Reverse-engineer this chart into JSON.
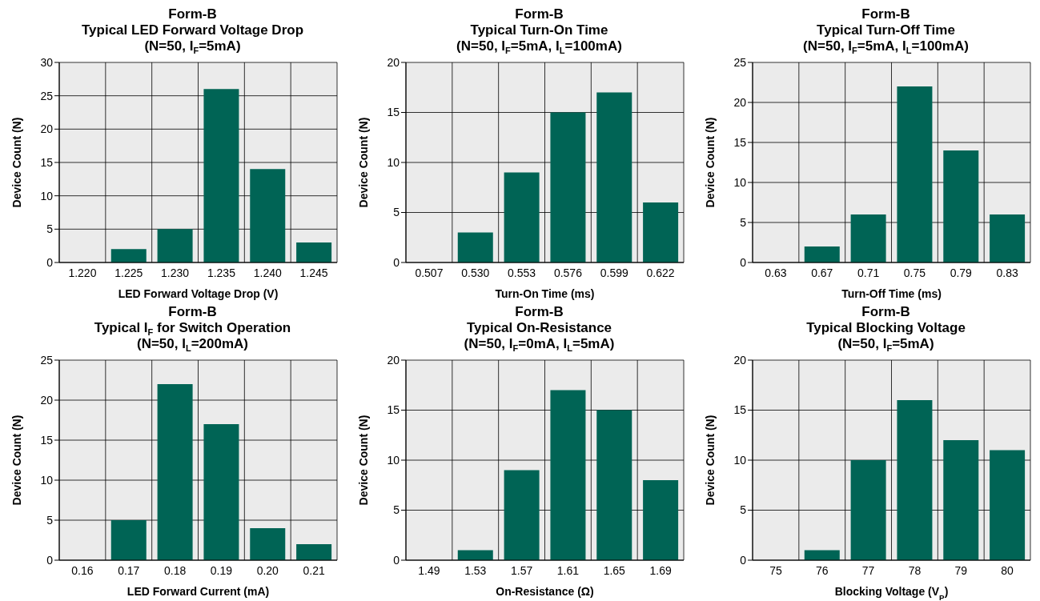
{
  "chart_data": [
    {
      "type": "bar",
      "title": "Form-B\nTypical LED Forward Voltage Drop\n(N=50, I$_{F}$=5mA)",
      "xlabel": "LED Forward Voltage Drop (V)",
      "ylabel": "Device Count (N)",
      "categories": [
        "1.220",
        "1.225",
        "1.230",
        "1.235",
        "1.240",
        "1.245"
      ],
      "values": [
        0,
        2,
        5,
        26,
        14,
        3
      ],
      "color": "#006455",
      "ylim": [
        0,
        30
      ],
      "yticks": [
        0,
        5,
        10,
        15,
        20,
        25,
        30
      ],
      "grid": true
    },
    {
      "type": "bar",
      "title": "Form-B\nTypical Turn-On Time\n(N=50, I$_{F}$=5mA, I$_{L}$=100mA)",
      "xlabel": "Turn-On Time (ms)",
      "ylabel": "Device Count (N)",
      "categories": [
        "0.507",
        "0.530",
        "0.553",
        "0.576",
        "0.599",
        "0.622"
      ],
      "values": [
        0,
        3,
        9,
        15,
        17,
        6
      ],
      "color": "#006455",
      "ylim": [
        0,
        20
      ],
      "yticks": [
        0,
        5,
        10,
        15,
        20
      ],
      "grid": true
    },
    {
      "type": "bar",
      "title": "Form-B\nTypical Turn-Off Time\n(N=50, I$_{F}$=5mA, I$_{L}$=100mA)",
      "xlabel": "Turn-Off Time (ms)",
      "ylabel": "Device Count (N)",
      "categories": [
        "0.63",
        "0.67",
        "0.71",
        "0.75",
        "0.79",
        "0.83"
      ],
      "values": [
        0,
        2,
        6,
        22,
        14,
        6
      ],
      "color": "#006455",
      "ylim": [
        0,
        25
      ],
      "yticks": [
        0,
        5,
        10,
        15,
        20,
        25
      ],
      "grid": true
    },
    {
      "type": "bar",
      "title": "Form-B\nTypical I$_{F}$ for Switch Operation\n(N=50, I$_{L}$=200mA)",
      "xlabel": "LED Forward Current (mA)",
      "ylabel": "Device Count (N)",
      "categories": [
        "0.16",
        "0.17",
        "0.18",
        "0.19",
        "0.20",
        "0.21"
      ],
      "values": [
        0,
        5,
        22,
        17,
        4,
        2
      ],
      "color": "#006455",
      "ylim": [
        0,
        25
      ],
      "yticks": [
        0,
        5,
        10,
        15,
        20,
        25
      ],
      "grid": true
    },
    {
      "type": "bar",
      "title": "Form-B\nTypical On-Resistance\n(N=50, I$_{F}$=0mA, I$_{L}$=5mA)",
      "xlabel": "On-Resistance (Ω)",
      "ylabel": "Device Count (N)",
      "categories": [
        "1.49",
        "1.53",
        "1.57",
        "1.61",
        "1.65",
        "1.69"
      ],
      "values": [
        0,
        1,
        9,
        17,
        15,
        8
      ],
      "color": "#006455",
      "ylim": [
        0,
        20
      ],
      "yticks": [
        0,
        5,
        10,
        15,
        20
      ],
      "grid": true
    },
    {
      "type": "bar",
      "title": "Form-B\nTypical Blocking Voltage\n(N=50, I$_{F}$=5mA)",
      "xlabel": "Blocking Voltage (V$_{P}$)",
      "ylabel": "Device Count (N)",
      "categories": [
        "75",
        "76",
        "77",
        "78",
        "79",
        "80"
      ],
      "values": [
        0,
        1,
        10,
        16,
        12,
        11
      ],
      "color": "#006455",
      "ylim": [
        0,
        20
      ],
      "yticks": [
        0,
        5,
        10,
        15,
        20
      ],
      "grid": true
    }
  ]
}
